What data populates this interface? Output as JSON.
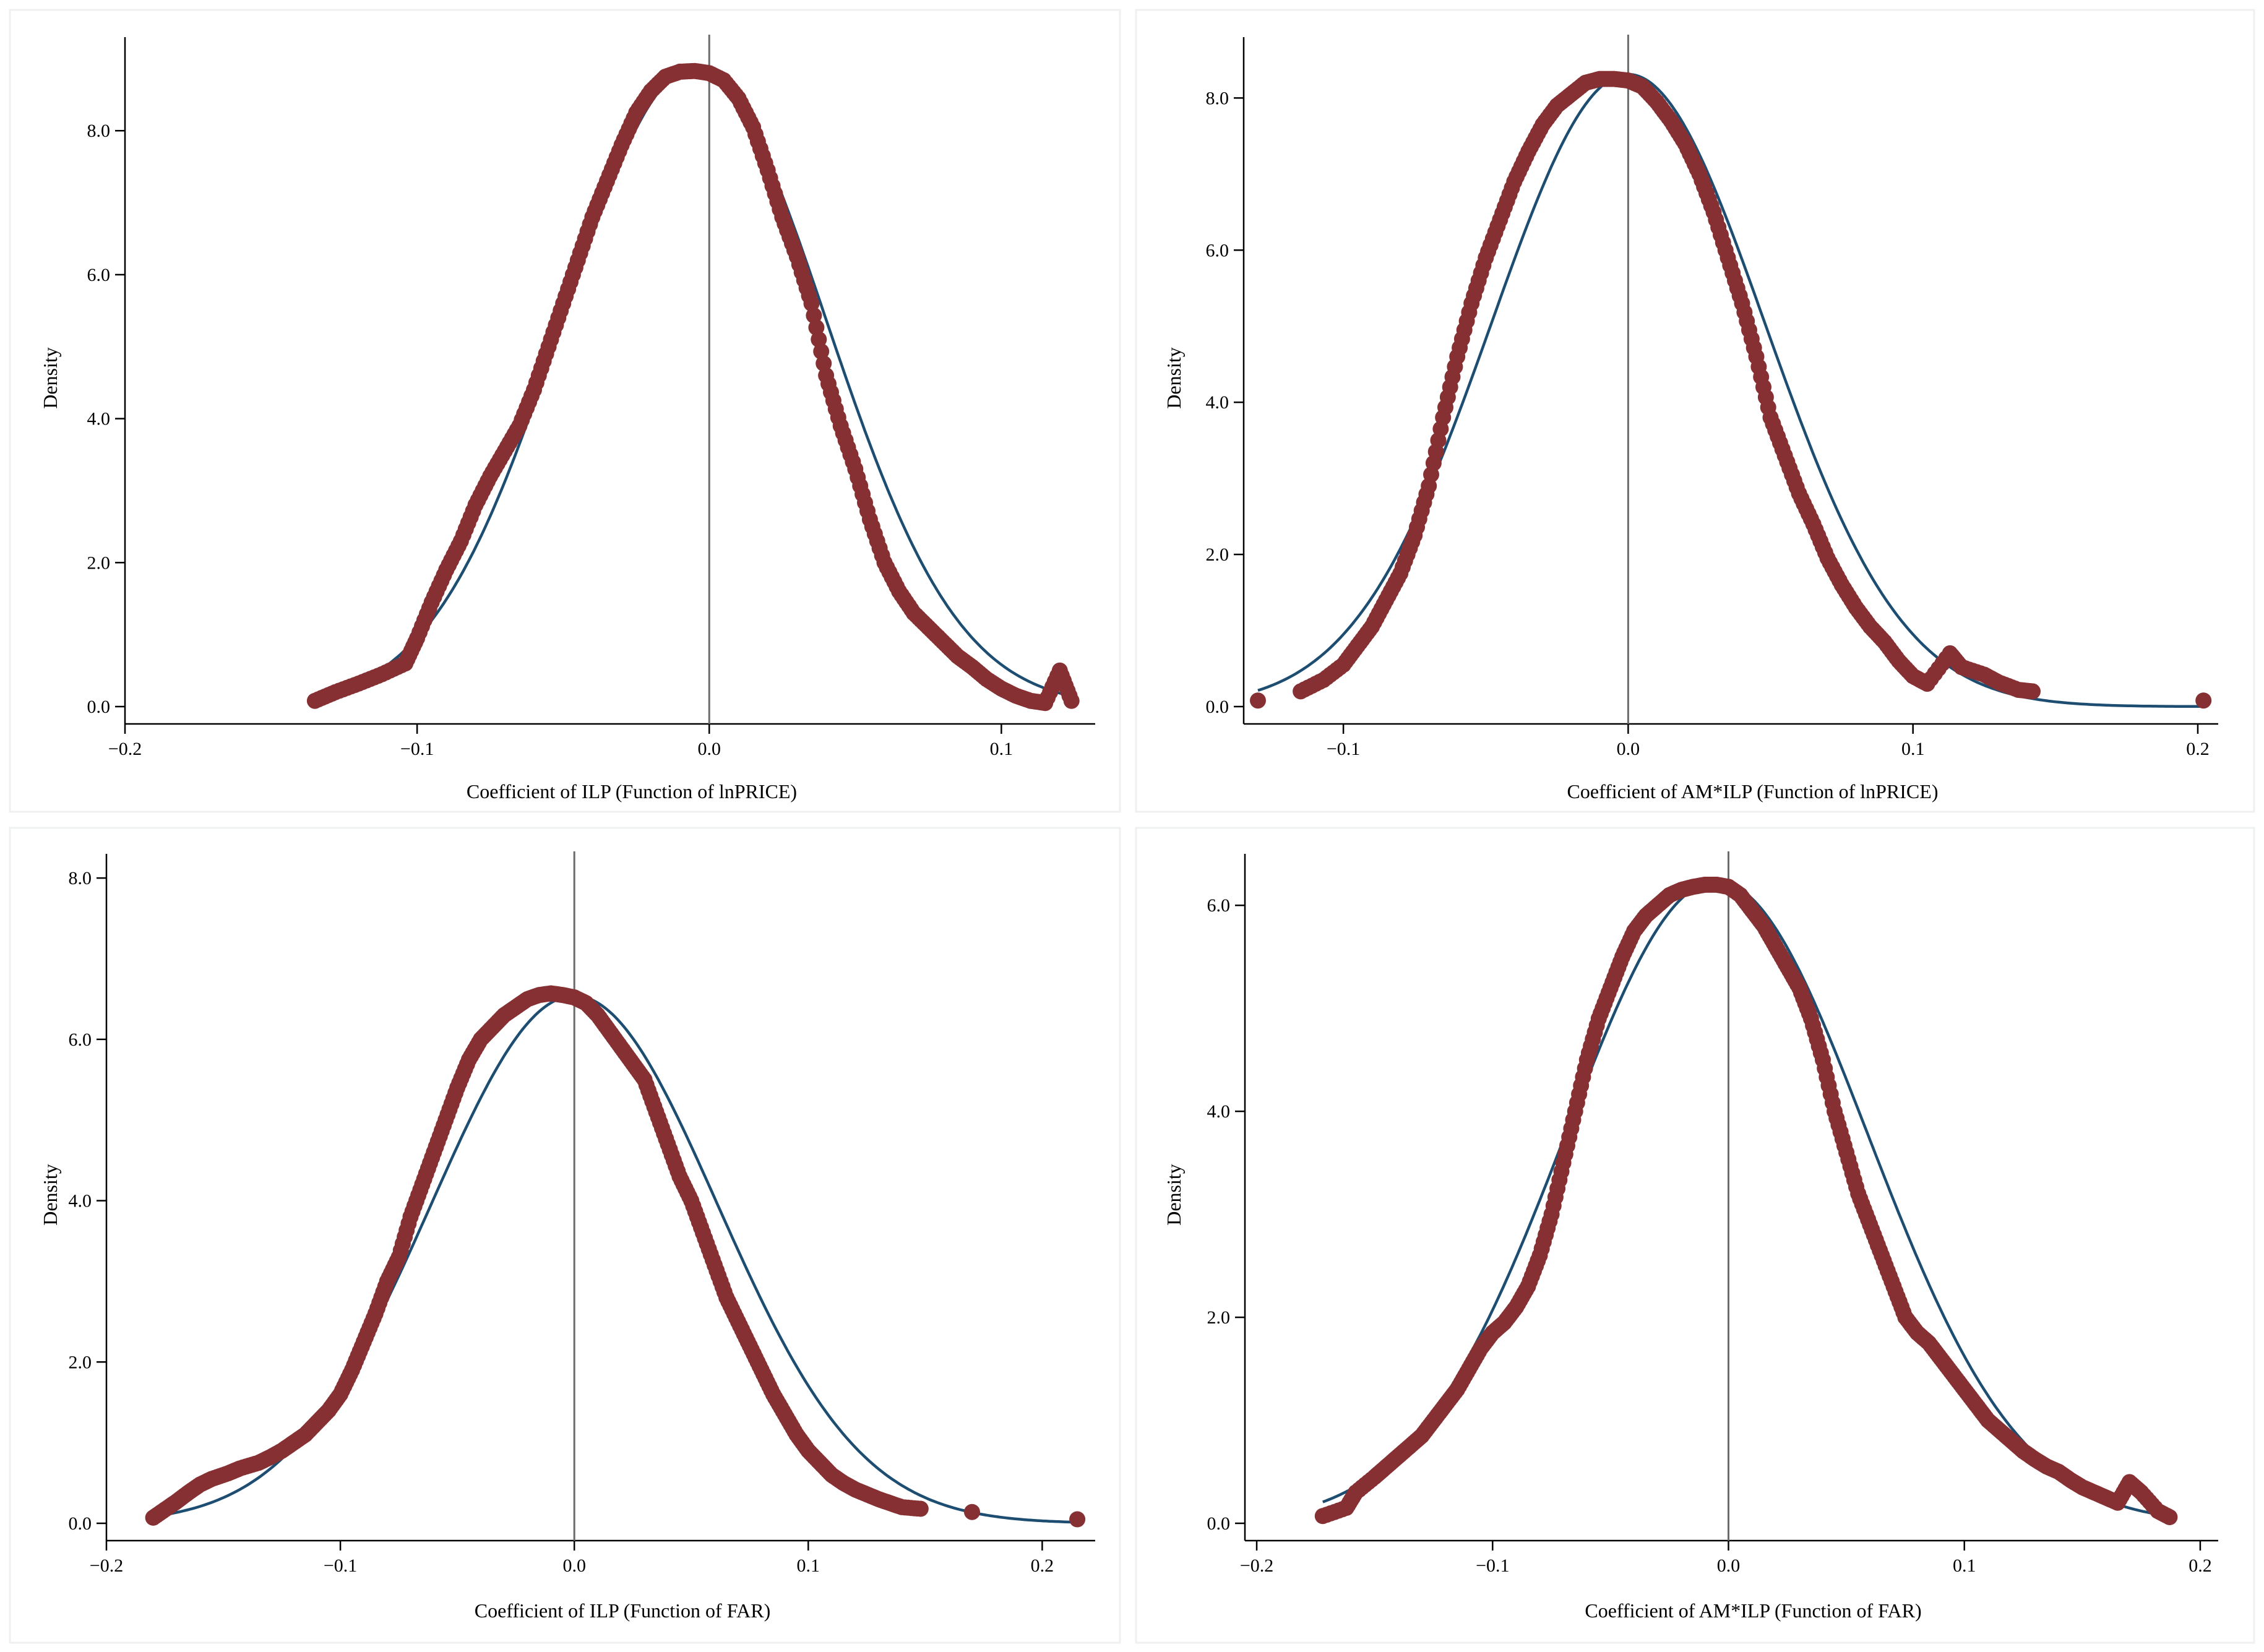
{
  "chart_data": [
    {
      "type": "scatter",
      "xlabel": "Coefficient of ILP (Function of lnPRICE)",
      "ylabel": "Density",
      "xticks": [
        -0.2,
        -0.1,
        0.0,
        0.1
      ],
      "xtick_labels": [
        "−0.2",
        "−0.1",
        "0.0",
        "0.1"
      ],
      "yticks": [
        0,
        2,
        4,
        6,
        8
      ],
      "ytick_labels": [
        "0.0",
        "2.0",
        "4.0",
        "6.0",
        "8.0"
      ],
      "xlim": [
        -0.2,
        0.13
      ],
      "ylim": [
        0,
        9.3
      ],
      "reference_line_x": 0.0,
      "kernel_density": {
        "x": [
          -0.135,
          -0.128,
          -0.12,
          -0.112,
          -0.104,
          -0.1,
          -0.095,
          -0.09,
          -0.085,
          -0.08,
          -0.075,
          -0.07,
          -0.065,
          -0.06,
          -0.055,
          -0.05,
          -0.045,
          -0.04,
          -0.035,
          -0.03,
          -0.025,
          -0.02,
          -0.015,
          -0.01,
          -0.005,
          0.0,
          0.005,
          0.01,
          0.015,
          0.02,
          0.025,
          0.03,
          0.035,
          0.04,
          0.045,
          0.05,
          0.055,
          0.06,
          0.065,
          0.07,
          0.075,
          0.08,
          0.085,
          0.09,
          0.095,
          0.1,
          0.105,
          0.11,
          0.115,
          0.12,
          0.124
        ],
        "y": [
          0.08,
          0.2,
          0.32,
          0.45,
          0.6,
          0.95,
          1.45,
          1.9,
          2.3,
          2.8,
          3.2,
          3.55,
          3.9,
          4.4,
          5.0,
          5.6,
          6.2,
          6.8,
          7.3,
          7.8,
          8.25,
          8.55,
          8.75,
          8.82,
          8.83,
          8.8,
          8.7,
          8.45,
          8.05,
          7.45,
          6.8,
          6.25,
          5.6,
          4.6,
          3.9,
          3.3,
          2.6,
          2.0,
          1.6,
          1.3,
          1.1,
          0.9,
          0.7,
          0.55,
          0.38,
          0.25,
          0.15,
          0.08,
          0.05,
          0.5,
          0.08
        ]
      },
      "normal_density": {
        "mean": -0.005,
        "sd": 0.045
      }
    },
    {
      "type": "scatter",
      "xlabel": "Coefficient of AM*ILP (Function of lnPRICE)",
      "ylabel": "Density",
      "xticks": [
        -0.1,
        0.0,
        0.1,
        0.2
      ],
      "xtick_labels": [
        "−0.1",
        "0.0",
        "0.1",
        "0.2"
      ],
      "yticks": [
        0,
        2,
        4,
        6,
        8
      ],
      "ytick_labels": [
        "0.0",
        "2.0",
        "4.0",
        "6.0",
        "8.0"
      ],
      "xlim": [
        -0.135,
        0.205
      ],
      "ylim": [
        0,
        8.8
      ],
      "reference_line_x": 0.0,
      "kernel_density": {
        "x": [
          -0.13,
          -0.115,
          -0.107,
          -0.1,
          -0.095,
          -0.09,
          -0.085,
          -0.08,
          -0.075,
          -0.07,
          -0.065,
          -0.06,
          -0.055,
          -0.05,
          -0.045,
          -0.04,
          -0.035,
          -0.03,
          -0.025,
          -0.02,
          -0.015,
          -0.01,
          -0.005,
          0.0,
          0.005,
          0.01,
          0.015,
          0.02,
          0.025,
          0.03,
          0.035,
          0.04,
          0.045,
          0.05,
          0.055,
          0.06,
          0.065,
          0.07,
          0.075,
          0.08,
          0.085,
          0.09,
          0.095,
          0.1,
          0.105,
          0.113,
          0.117,
          0.125,
          0.13,
          0.137,
          0.142,
          0.202
        ],
        "y": [
          0.08,
          0.2,
          0.35,
          0.55,
          0.8,
          1.05,
          1.4,
          1.75,
          2.25,
          2.9,
          3.8,
          4.6,
          5.3,
          5.9,
          6.4,
          6.9,
          7.3,
          7.65,
          7.9,
          8.05,
          8.2,
          8.25,
          8.25,
          8.23,
          8.15,
          7.95,
          7.7,
          7.4,
          7.0,
          6.5,
          5.9,
          5.3,
          4.6,
          3.8,
          3.3,
          2.8,
          2.4,
          1.95,
          1.6,
          1.3,
          1.05,
          0.85,
          0.6,
          0.4,
          0.3,
          0.7,
          0.52,
          0.42,
          0.32,
          0.22,
          0.2,
          0.08
        ]
      },
      "normal_density": {
        "mean": 0.0,
        "sd": 0.048
      }
    },
    {
      "type": "scatter",
      "xlabel": "Coefficient of ILP (Function of FAR)",
      "ylabel": "Density",
      "xticks": [
        -0.2,
        -0.1,
        0.0,
        0.1,
        0.2
      ],
      "xtick_labels": [
        "−0.2",
        "−0.1",
        "0.0",
        "0.1",
        "0.2"
      ],
      "yticks": [
        0,
        2,
        4,
        6,
        8
      ],
      "ytick_labels": [
        "0.0",
        "2.0",
        "4.0",
        "6.0",
        "8.0"
      ],
      "xlim": [
        -0.2,
        0.22
      ],
      "ylim": [
        0,
        8.3
      ],
      "reference_line_x": 0.0,
      "kernel_density": {
        "x": [
          -0.18,
          -0.175,
          -0.17,
          -0.165,
          -0.16,
          -0.155,
          -0.148,
          -0.143,
          -0.135,
          -0.13,
          -0.125,
          -0.12,
          -0.115,
          -0.11,
          -0.105,
          -0.1,
          -0.095,
          -0.09,
          -0.085,
          -0.08,
          -0.075,
          -0.07,
          -0.065,
          -0.06,
          -0.055,
          -0.05,
          -0.045,
          -0.04,
          -0.035,
          -0.03,
          -0.025,
          -0.02,
          -0.015,
          -0.01,
          -0.005,
          0.0,
          0.005,
          0.01,
          0.015,
          0.02,
          0.025,
          0.03,
          0.035,
          0.04,
          0.045,
          0.05,
          0.055,
          0.06,
          0.065,
          0.07,
          0.075,
          0.08,
          0.085,
          0.09,
          0.095,
          0.1,
          0.105,
          0.11,
          0.115,
          0.12,
          0.125,
          0.13,
          0.135,
          0.14,
          0.148,
          0.17,
          0.215
        ],
        "y": [
          0.07,
          0.17,
          0.27,
          0.38,
          0.48,
          0.55,
          0.62,
          0.68,
          0.75,
          0.82,
          0.9,
          1.0,
          1.1,
          1.25,
          1.4,
          1.6,
          1.9,
          2.25,
          2.6,
          3.0,
          3.3,
          3.8,
          4.2,
          4.6,
          5.0,
          5.4,
          5.75,
          6.0,
          6.15,
          6.3,
          6.4,
          6.5,
          6.55,
          6.57,
          6.55,
          6.52,
          6.45,
          6.3,
          6.1,
          5.9,
          5.7,
          5.5,
          5.1,
          4.7,
          4.3,
          4.0,
          3.6,
          3.2,
          2.8,
          2.5,
          2.2,
          1.9,
          1.6,
          1.35,
          1.1,
          0.9,
          0.75,
          0.6,
          0.5,
          0.42,
          0.36,
          0.3,
          0.25,
          0.2,
          0.18,
          0.14,
          0.05
        ]
      },
      "normal_density": {
        "mean": 0.0,
        "sd": 0.061
      }
    },
    {
      "type": "scatter",
      "xlabel": "Coefficient of AM*ILP (Function of FAR)",
      "ylabel": "Density",
      "xticks": [
        -0.2,
        -0.1,
        0.0,
        0.1,
        0.2
      ],
      "xtick_labels": [
        "−0.2",
        "−0.1",
        "0.0",
        "0.1",
        "0.2"
      ],
      "yticks": [
        0,
        2,
        4,
        6
      ],
      "ytick_labels": [
        "0.0",
        "2.0",
        "4.0",
        "6.0"
      ],
      "xlim": [
        -0.205,
        0.205
      ],
      "ylim": [
        0,
        6.5
      ],
      "reference_line_x": 0.0,
      "kernel_density": {
        "x": [
          -0.172,
          -0.162,
          -0.158,
          -0.15,
          -0.145,
          -0.14,
          -0.135,
          -0.13,
          -0.125,
          -0.12,
          -0.115,
          -0.11,
          -0.105,
          -0.1,
          -0.095,
          -0.09,
          -0.085,
          -0.08,
          -0.075,
          -0.07,
          -0.065,
          -0.06,
          -0.055,
          -0.05,
          -0.045,
          -0.04,
          -0.035,
          -0.03,
          -0.025,
          -0.02,
          -0.015,
          -0.01,
          -0.005,
          0.0,
          0.005,
          0.01,
          0.015,
          0.02,
          0.025,
          0.03,
          0.035,
          0.04,
          0.045,
          0.05,
          0.055,
          0.06,
          0.065,
          0.07,
          0.075,
          0.08,
          0.085,
          0.09,
          0.095,
          0.1,
          0.105,
          0.11,
          0.115,
          0.12,
          0.125,
          0.13,
          0.135,
          0.14,
          0.145,
          0.15,
          0.155,
          0.16,
          0.165,
          0.17,
          0.175,
          0.182,
          0.187
        ],
        "y": [
          0.07,
          0.15,
          0.3,
          0.45,
          0.55,
          0.65,
          0.75,
          0.85,
          1.0,
          1.15,
          1.3,
          1.5,
          1.7,
          1.85,
          1.95,
          2.1,
          2.3,
          2.6,
          3.0,
          3.5,
          4.0,
          4.5,
          4.9,
          5.2,
          5.5,
          5.75,
          5.9,
          6.0,
          6.1,
          6.15,
          6.18,
          6.2,
          6.2,
          6.18,
          6.1,
          5.95,
          5.8,
          5.6,
          5.4,
          5.2,
          4.9,
          4.5,
          4.0,
          3.6,
          3.2,
          2.9,
          2.6,
          2.3,
          2.0,
          1.85,
          1.75,
          1.6,
          1.45,
          1.3,
          1.15,
          1.0,
          0.9,
          0.8,
          0.7,
          0.62,
          0.55,
          0.5,
          0.42,
          0.35,
          0.3,
          0.25,
          0.2,
          0.4,
          0.3,
          0.12,
          0.06
        ]
      },
      "normal_density": {
        "mean": -0.005,
        "sd": 0.064
      }
    }
  ],
  "colors": {
    "kde_points": "#873033",
    "normal_curve": "#1d4e72",
    "reference_line": "#6b6b6b",
    "axis": "#000000"
  }
}
